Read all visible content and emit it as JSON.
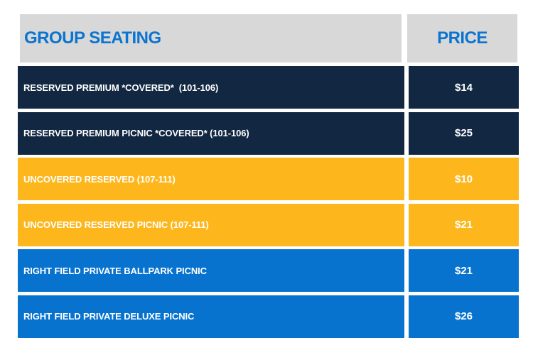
{
  "palette": {
    "header_bg": "#d8d8d8",
    "header_text": "#0b74d0",
    "navy": "#112742",
    "gold": "#fdb71c",
    "blue": "#0873ce",
    "row_text": "#ffffff"
  },
  "table": {
    "header": {
      "group_label": "GROUP SEATING",
      "price_label": "PRICE"
    },
    "rows": [
      {
        "label": "RESERVED PREMIUM *COVERED*  (101-106)",
        "price": "$14",
        "bg": "#112742"
      },
      {
        "label": "RESERVED PREMIUM PICNIC *COVERED* (101-106)",
        "price": "$25",
        "bg": "#112742"
      },
      {
        "label": "UNCOVERED RESERVED (107-111)",
        "price": "$10",
        "bg": "#fdb71c"
      },
      {
        "label": "UNCOVERED RESERVED PICNIC (107-111)",
        "price": "$21",
        "bg": "#fdb71c"
      },
      {
        "label": "RIGHT FIELD PRIVATE BALLPARK PICNIC",
        "price": "$21",
        "bg": "#0873ce"
      },
      {
        "label": "RIGHT FIELD PRIVATE DELUXE PICNIC",
        "price": "$26",
        "bg": "#0873ce"
      }
    ]
  },
  "chart_data": {
    "type": "table",
    "title": "GROUP SEATING",
    "columns": [
      "GROUP SEATING",
      "PRICE"
    ],
    "rows": [
      [
        "RESERVED PREMIUM *COVERED* (101-106)",
        "$14"
      ],
      [
        "RESERVED PREMIUM PICNIC *COVERED* (101-106)",
        "$25"
      ],
      [
        "UNCOVERED RESERVED (107-111)",
        "$10"
      ],
      [
        "UNCOVERED RESERVED PICNIC (107-111)",
        "$21"
      ],
      [
        "RIGHT FIELD PRIVATE BALLPARK PICNIC",
        "$21"
      ],
      [
        "RIGHT FIELD PRIVATE DELUXE PICNIC",
        "$26"
      ]
    ],
    "row_group_colors": [
      "navy",
      "navy",
      "gold",
      "gold",
      "blue",
      "blue"
    ]
  }
}
